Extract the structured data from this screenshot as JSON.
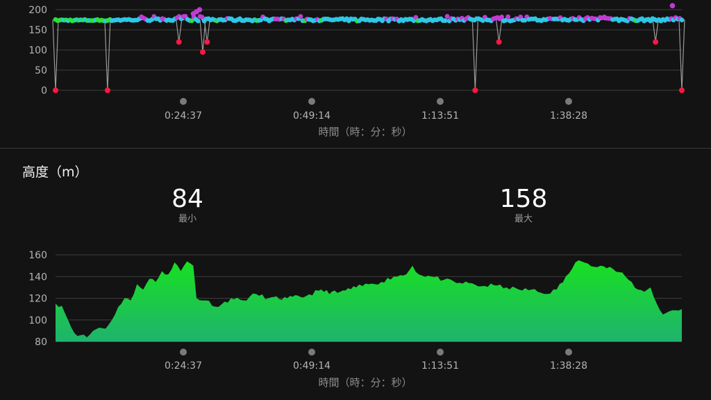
{
  "cadence_chart": {
    "chart_data": {
      "type": "scatter",
      "y_ticks": [
        "200",
        "150",
        "100",
        "50",
        "0"
      ],
      "ylim": [
        0,
        200
      ],
      "x_ticks": [
        "0:24:37",
        "0:49:14",
        "1:13:51",
        "1:38:28"
      ],
      "xlabel": "時間（時：分：秒）",
      "baseline": 175,
      "drops": [
        {
          "x": 0.0,
          "y": 0
        },
        {
          "x": 0.083,
          "y": 0
        },
        {
          "x": 0.197,
          "y": 120
        },
        {
          "x": 0.235,
          "y": 95
        },
        {
          "x": 0.242,
          "y": 120
        },
        {
          "x": 0.67,
          "y": 0
        },
        {
          "x": 0.708,
          "y": 120
        },
        {
          "x": 0.958,
          "y": 120
        },
        {
          "x": 1.0,
          "y": 0
        }
      ],
      "highs": [
        {
          "x": 0.22,
          "y": 190
        },
        {
          "x": 0.225,
          "y": 195
        },
        {
          "x": 0.23,
          "y": 200
        },
        {
          "x": 0.985,
          "y": 210
        }
      ]
    }
  },
  "altitude_chart": {
    "title": "高度（m）",
    "min_value": "84",
    "min_label": "最小",
    "max_value": "158",
    "max_label": "最大",
    "chart_data": {
      "type": "area",
      "y_ticks": [
        "160",
        "140",
        "120",
        "100",
        "80"
      ],
      "ylim": [
        80,
        160
      ],
      "x_ticks": [
        "0:24:37",
        "0:49:14",
        "1:13:51",
        "1:38:28"
      ],
      "xlabel": "時間（時：分：秒）",
      "points": [
        [
          0.0,
          115
        ],
        [
          0.01,
          113
        ],
        [
          0.02,
          100
        ],
        [
          0.03,
          88
        ],
        [
          0.04,
          86
        ],
        [
          0.05,
          84
        ],
        [
          0.06,
          90
        ],
        [
          0.07,
          93
        ],
        [
          0.08,
          92
        ],
        [
          0.09,
          100
        ],
        [
          0.1,
          112
        ],
        [
          0.11,
          120
        ],
        [
          0.12,
          118
        ],
        [
          0.13,
          133
        ],
        [
          0.14,
          128
        ],
        [
          0.15,
          138
        ],
        [
          0.16,
          135
        ],
        [
          0.17,
          145
        ],
        [
          0.18,
          142
        ],
        [
          0.19,
          153
        ],
        [
          0.2,
          145
        ],
        [
          0.21,
          154
        ],
        [
          0.22,
          150
        ],
        [
          0.225,
          120
        ],
        [
          0.24,
          118
        ],
        [
          0.26,
          112
        ],
        [
          0.28,
          120
        ],
        [
          0.3,
          118
        ],
        [
          0.32,
          124
        ],
        [
          0.34,
          120
        ],
        [
          0.37,
          120
        ],
        [
          0.4,
          122
        ],
        [
          0.42,
          127
        ],
        [
          0.45,
          125
        ],
        [
          0.48,
          130
        ],
        [
          0.5,
          133
        ],
        [
          0.52,
          135
        ],
        [
          0.54,
          140
        ],
        [
          0.56,
          142
        ],
        [
          0.57,
          150
        ],
        [
          0.58,
          142
        ],
        [
          0.6,
          140
        ],
        [
          0.62,
          137
        ],
        [
          0.64,
          134
        ],
        [
          0.66,
          134
        ],
        [
          0.68,
          131
        ],
        [
          0.7,
          132
        ],
        [
          0.72,
          130
        ],
        [
          0.74,
          128
        ],
        [
          0.76,
          128
        ],
        [
          0.78,
          124
        ],
        [
          0.8,
          128
        ],
        [
          0.82,
          143
        ],
        [
          0.83,
          153
        ],
        [
          0.84,
          154
        ],
        [
          0.85,
          152
        ],
        [
          0.87,
          150
        ],
        [
          0.89,
          147
        ],
        [
          0.91,
          140
        ],
        [
          0.93,
          128
        ],
        [
          0.94,
          126
        ],
        [
          0.95,
          130
        ],
        [
          0.96,
          115
        ],
        [
          0.97,
          105
        ],
        [
          0.98,
          108
        ],
        [
          1.0,
          110
        ]
      ]
    }
  },
  "colors": {
    "background": "#131313",
    "grid": "#3d3d3d",
    "cadence_cyan": "#2ec7e6",
    "cadence_magenta": "#c23bd4",
    "cadence_green": "#27e33a",
    "cadence_red": "#ff1744",
    "area_top": "#18e020",
    "area_bottom": "#1fb36e"
  }
}
